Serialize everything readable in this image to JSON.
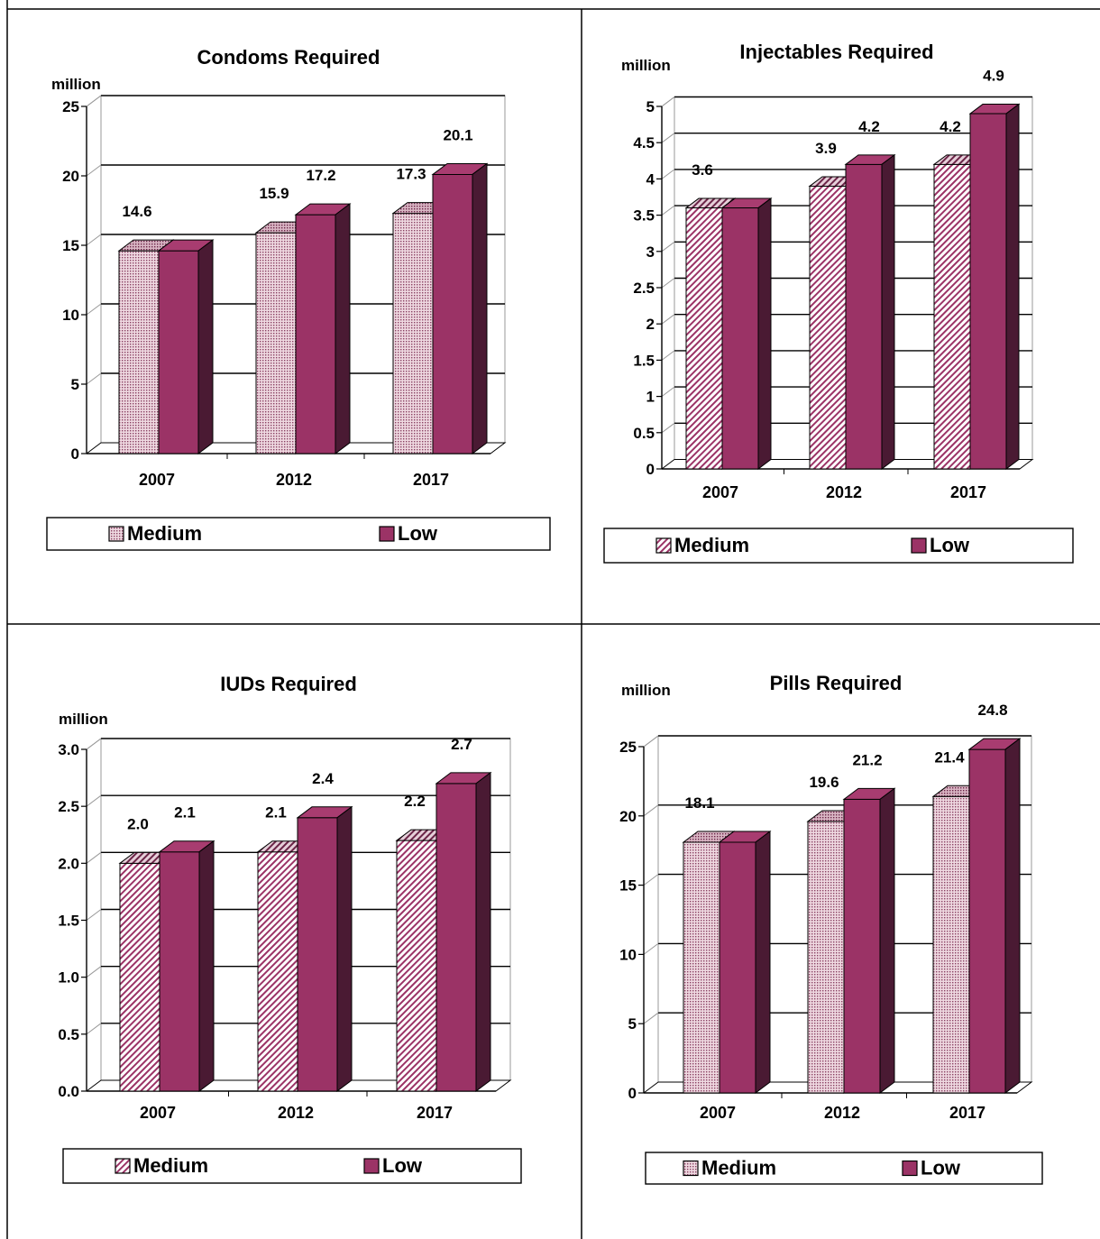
{
  "colors": {
    "medium_fill": "#e8c9d4",
    "medium_hatch": "#7a2a4a",
    "low_front": "#9b3366",
    "low_top": "#a83c70",
    "low_side": "#4a1a33",
    "gridline": "#000000"
  },
  "chart_data": [
    {
      "type": "bar",
      "title": "Condoms Required",
      "unit_label": "million",
      "categories": [
        "2007",
        "2012",
        "2017"
      ],
      "series": [
        {
          "name": "Medium",
          "values": [
            14.6,
            15.9,
            17.3
          ],
          "labels": [
            "14.6",
            "15.9",
            "17.3"
          ],
          "pattern": "dots"
        },
        {
          "name": "Low",
          "values": [
            14.6,
            17.2,
            20.1
          ],
          "labels": [
            "",
            "17.2",
            "20.1"
          ],
          "pattern": "solid"
        }
      ],
      "ylim": [
        0,
        25
      ],
      "yticks": [
        0,
        5,
        10,
        15,
        20,
        25
      ],
      "ytick_labels": [
        "0",
        "5",
        "10",
        "15",
        "20",
        "25"
      ],
      "grid": true,
      "legend": "bottom"
    },
    {
      "type": "bar",
      "title": "Injectables Required",
      "unit_label": "million",
      "categories": [
        "2007",
        "2012",
        "2017"
      ],
      "series": [
        {
          "name": "Medium",
          "values": [
            3.6,
            3.9,
            4.2
          ],
          "labels": [
            "3.6",
            "3.9",
            "4.2"
          ],
          "pattern": "diagonal"
        },
        {
          "name": "Low",
          "values": [
            3.6,
            4.2,
            4.9
          ],
          "labels": [
            "",
            "4.2",
            "4.9"
          ],
          "pattern": "solid"
        }
      ],
      "ylim": [
        0,
        5
      ],
      "yticks": [
        0,
        0.5,
        1,
        1.5,
        2,
        2.5,
        3,
        3.5,
        4,
        4.5,
        5
      ],
      "ytick_labels": [
        "0",
        "0.5",
        "1",
        "1.5",
        "2",
        "2.5",
        "3",
        "3.5",
        "4",
        "4.5",
        "5"
      ],
      "grid": true,
      "legend": "bottom"
    },
    {
      "type": "bar",
      "title": "IUDs Required",
      "unit_label": "million",
      "categories": [
        "2007",
        "2012",
        "2017"
      ],
      "series": [
        {
          "name": "Medium",
          "values": [
            2.0,
            2.1,
            2.2
          ],
          "labels": [
            "2.0",
            "2.1",
            "2.2"
          ],
          "pattern": "diagonal"
        },
        {
          "name": "Low",
          "values": [
            2.1,
            2.4,
            2.7
          ],
          "labels": [
            "2.1",
            "2.4",
            "2.7"
          ],
          "pattern": "solid"
        }
      ],
      "ylim": [
        0,
        3.0
      ],
      "yticks": [
        0,
        0.5,
        1.0,
        1.5,
        2.0,
        2.5,
        3.0
      ],
      "ytick_labels": [
        "0.0",
        "0.5",
        "1.0",
        "1.5",
        "2.0",
        "2.5",
        "3.0"
      ],
      "grid": true,
      "legend": "bottom"
    },
    {
      "type": "bar",
      "title": "Pills Required",
      "unit_label": "million",
      "categories": [
        "2007",
        "2012",
        "2017"
      ],
      "series": [
        {
          "name": "Medium",
          "values": [
            18.1,
            19.6,
            21.4
          ],
          "labels": [
            "18.1",
            "19.6",
            "21.4"
          ],
          "pattern": "dots"
        },
        {
          "name": "Low",
          "values": [
            18.1,
            21.2,
            24.8
          ],
          "labels": [
            "",
            "21.2",
            "24.8"
          ],
          "pattern": "solid"
        }
      ],
      "ylim": [
        0,
        25
      ],
      "yticks": [
        0,
        5,
        10,
        15,
        20,
        25
      ],
      "ytick_labels": [
        "0",
        "5",
        "10",
        "15",
        "20",
        "25"
      ],
      "grid": true,
      "legend": "bottom"
    }
  ]
}
